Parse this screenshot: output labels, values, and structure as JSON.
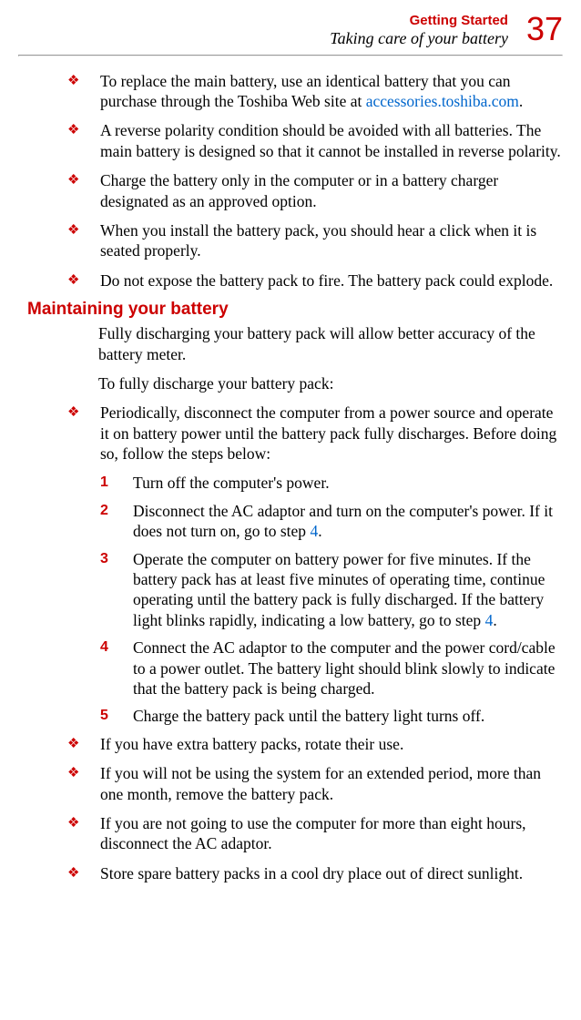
{
  "header": {
    "chapter_title": "Getting Started",
    "section_title": "Taking care of your battery",
    "page_number": "37",
    "chapter_color": "#cc0000",
    "page_number_color": "#cc0000"
  },
  "bullets_top": [
    {
      "pre": "To replace the main battery, use an identical battery that you can purchase through the Toshiba Web site at ",
      "link": "accessories.toshiba.com",
      "post": "."
    },
    {
      "text": "A reverse polarity condition should be avoided with all batteries. The main battery is designed so that it cannot be installed in reverse polarity."
    },
    {
      "text": "Charge the battery only in the computer or in a battery charger designated as an approved option."
    },
    {
      "text": "When you install the battery pack, you should hear a click when it is seated properly."
    },
    {
      "text": "Do not expose the battery pack to fire. The battery pack could explode."
    }
  ],
  "section_heading": "Maintaining your battery",
  "intro_1": "Fully discharging your battery pack will allow better accuracy of the battery meter.",
  "intro_2": "To fully discharge your battery pack:",
  "bullet_intro_numbered": "Periodically, disconnect the computer from a power source and operate it on battery power until the battery pack fully discharges. Before doing so, follow the steps below:",
  "steps": [
    {
      "num": "1",
      "text": "Turn off the computer's power."
    },
    {
      "num": "2",
      "pre": "Disconnect the AC adaptor and turn on the computer's power. If it does not turn on, go to step ",
      "link": "4",
      "post": "."
    },
    {
      "num": "3",
      "pre": "Operate the computer on battery power for five minutes. If the battery pack has at least five minutes of operating time, continue operating until the battery pack is fully discharged. If the battery light blinks rapidly, indicating a low battery, go to step ",
      "link": "4",
      "post": "."
    },
    {
      "num": "4",
      "text": "Connect the AC adaptor to the computer and the power cord/cable to a power outlet. The battery light should blink slowly to indicate that the battery pack is being charged."
    },
    {
      "num": "5",
      "text": "Charge the battery pack until the battery light turns off."
    }
  ],
  "bullets_bottom": [
    {
      "text": "If you have extra battery packs, rotate their use."
    },
    {
      "text": "If you will not be using the system for an extended period, more than one month, remove the battery pack."
    },
    {
      "text": "If you are not going to use the computer for more than eight hours, disconnect the AC adaptor."
    },
    {
      "text": "Store spare battery packs in a cool dry place out of direct sunlight."
    }
  ],
  "bullet_glyph": "❖",
  "colors": {
    "accent": "#cc0000",
    "link": "#0066cc",
    "text": "#000000",
    "background": "#ffffff"
  }
}
